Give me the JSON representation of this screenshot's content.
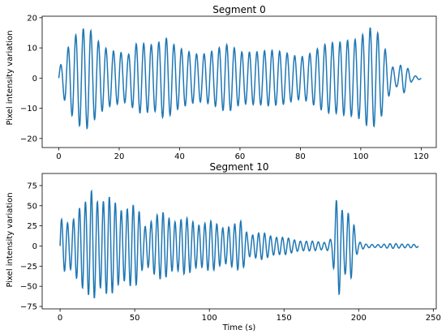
{
  "chart_data": [
    {
      "type": "line",
      "title": "Segment 0",
      "ylabel": "Pixel intensity variation",
      "xlabel": "",
      "xlim": [
        -5.5,
        125
      ],
      "ylim": [
        -23,
        20.5
      ],
      "xticks": [
        0,
        20,
        40,
        60,
        80,
        100,
        120
      ],
      "xtick_labels": [
        "0",
        "20",
        "40",
        "60",
        "80",
        "100",
        "120"
      ],
      "yticks": [
        -20,
        -10,
        0,
        10,
        20
      ],
      "ytick_labels": [
        "−20",
        "−10",
        "0",
        "10",
        "20"
      ],
      "grid": false,
      "color": "#1f77b4",
      "x_range": [
        0,
        120
      ],
      "period": 2.5,
      "amplitude_envelope": [
        [
          0,
          3
        ],
        [
          3,
          9
        ],
        [
          7,
          15
        ],
        [
          10,
          18
        ],
        [
          13,
          14
        ],
        [
          16,
          10
        ],
        [
          19,
          8
        ],
        [
          23,
          7
        ],
        [
          26,
          12
        ],
        [
          29,
          13
        ],
        [
          32,
          12
        ],
        [
          35,
          13
        ],
        [
          38,
          10
        ],
        [
          40,
          9
        ],
        [
          44,
          9
        ],
        [
          48,
          9
        ],
        [
          52,
          9
        ],
        [
          56,
          10
        ],
        [
          60,
          9
        ],
        [
          64,
          10
        ],
        [
          68,
          9
        ],
        [
          72,
          8
        ],
        [
          76,
          8
        ],
        [
          80,
          8
        ],
        [
          84,
          9
        ],
        [
          88,
          10
        ],
        [
          92,
          11
        ],
        [
          96,
          14
        ],
        [
          100,
          15
        ],
        [
          103,
          16
        ],
        [
          106,
          13
        ],
        [
          108,
          9
        ],
        [
          110,
          4
        ],
        [
          112,
          3
        ],
        [
          114,
          6
        ],
        [
          116,
          3
        ],
        [
          117,
          1
        ],
        [
          120,
          0.3
        ]
      ]
    },
    {
      "type": "line",
      "title": "Segment 10",
      "ylabel": "Pixel intensity variation",
      "xlabel": "Time (s)",
      "xlim": [
        -12,
        252
      ],
      "ylim": [
        -78,
        90
      ],
      "xticks": [
        0,
        50,
        100,
        150,
        200,
        250
      ],
      "xtick_labels": [
        "0",
        "50",
        "100",
        "150",
        "200",
        "250"
      ],
      "yticks": [
        -75,
        -50,
        -25,
        0,
        25,
        50,
        75
      ],
      "ytick_labels": [
        "−75",
        "−50",
        "−25",
        "0",
        "25",
        "50",
        "75"
      ],
      "grid": false,
      "color": "#1f77b4",
      "x_range": [
        0,
        240
      ],
      "period": 4,
      "amplitude_envelope": [
        [
          0,
          30
        ],
        [
          6,
          30
        ],
        [
          12,
          45
        ],
        [
          18,
          50
        ],
        [
          22,
          75
        ],
        [
          26,
          58
        ],
        [
          32,
          55
        ],
        [
          40,
          50
        ],
        [
          48,
          48
        ],
        [
          53,
          40
        ],
        [
          56,
          25
        ],
        [
          62,
          35
        ],
        [
          70,
          38
        ],
        [
          80,
          32
        ],
        [
          90,
          30
        ],
        [
          100,
          28
        ],
        [
          110,
          25
        ],
        [
          118,
          25
        ],
        [
          122,
          30
        ],
        [
          126,
          15
        ],
        [
          135,
          15
        ],
        [
          145,
          12
        ],
        [
          155,
          8
        ],
        [
          165,
          6
        ],
        [
          172,
          5
        ],
        [
          178,
          5
        ],
        [
          182,
          10
        ],
        [
          184,
          40
        ],
        [
          186,
          62
        ],
        [
          188,
          45
        ],
        [
          191,
          35
        ],
        [
          194,
          50
        ],
        [
          196,
          40
        ],
        [
          198,
          15
        ],
        [
          200,
          5
        ],
        [
          205,
          2
        ],
        [
          215,
          2
        ],
        [
          225,
          3
        ],
        [
          240,
          1.5
        ]
      ]
    }
  ]
}
